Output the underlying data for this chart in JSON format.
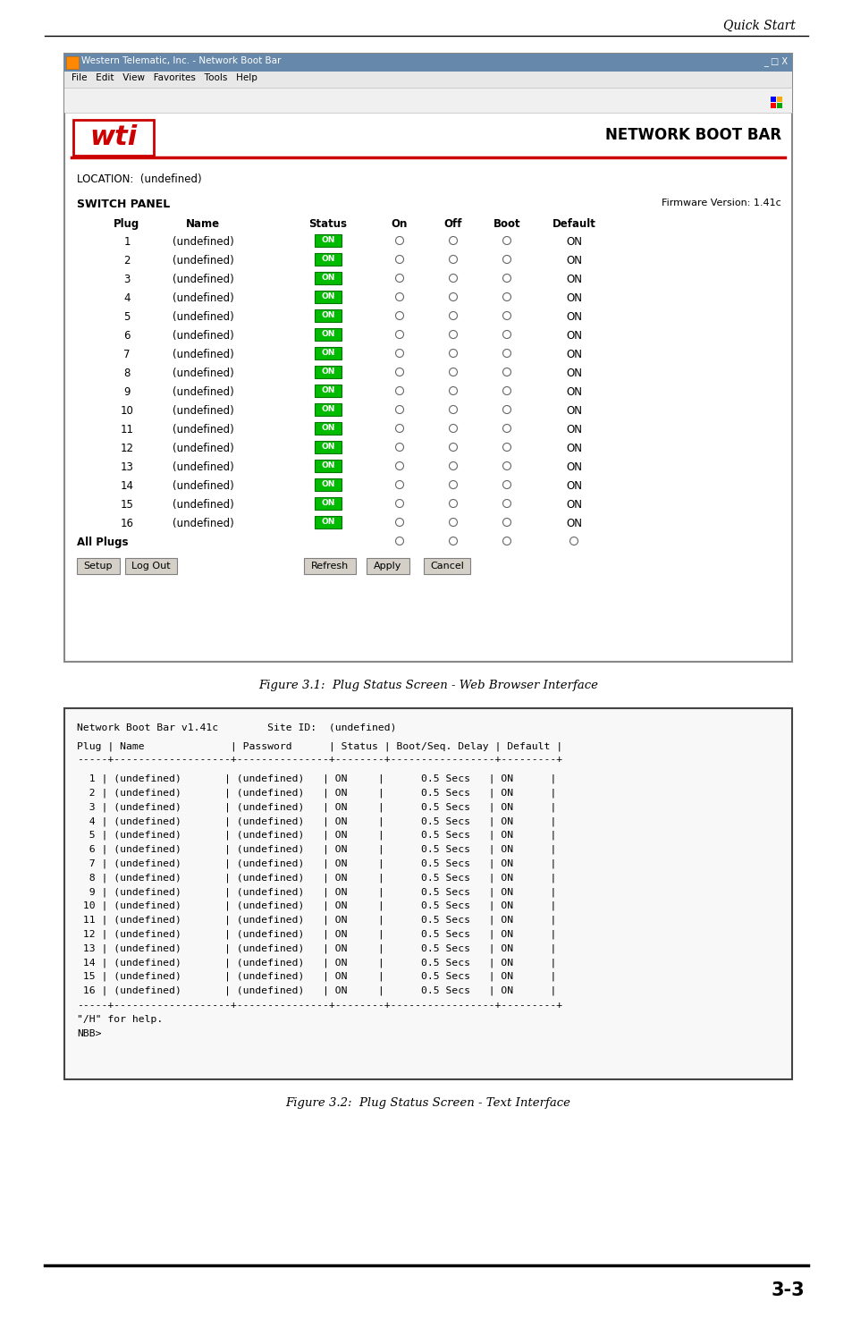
{
  "page_header": "Quick Start",
  "fig31_caption": "Figure 3.1:  Plug Status Screen - Web Browser Interface",
  "fig32_caption": "Figure 3.2:  Plug Status Screen - Text Interface",
  "page_number": "3-3",
  "browser_window": {
    "title_bar": "Western Telematic, Inc. - Network Boot Bar",
    "menu_bar": "File   Edit   View   Favorites   Tools   Help",
    "header_right": "NETWORK BOOT BAR",
    "location_text": "LOCATION:  (undefined)",
    "switch_panel": "SWITCH PANEL",
    "firmware": "Firmware Version: 1.41c",
    "columns": [
      "Plug",
      "Name",
      "Status",
      "On",
      "Off",
      "Boot",
      "Default"
    ],
    "num_plugs": 16,
    "buttons": [
      "Setup",
      "Log Out",
      "Refresh",
      "Apply",
      "Cancel"
    ]
  },
  "text_interface": {
    "header_line1": "Network Boot Bar v1.41c        Site ID:  (undefined)",
    "col_header": "Plug | Name              | Password      | Status | Boot/Seq. Delay | Default |",
    "separator": "-----+-------------------+---------------+--------+-----------------+---------+",
    "footer1": "\"/H\" for help.",
    "footer2": "NBB>"
  },
  "colors": {
    "background": "#ffffff",
    "titlebar_bg": "#6688cc",
    "titlebar_text": "#ffffff",
    "on_btn_bg": "#00bb00",
    "on_btn_border": "#007700",
    "button_bg": "#d4d0c8",
    "button_border": "#808080",
    "logo_red": "#cc0000",
    "header_line_red": "#cc0000",
    "window_bg": "#ffffff",
    "panel_bg": "#f8f8f8",
    "panel_border": "#555555",
    "menu_bg": "#eeeeee",
    "toolbar_bg": "#dddddd"
  }
}
